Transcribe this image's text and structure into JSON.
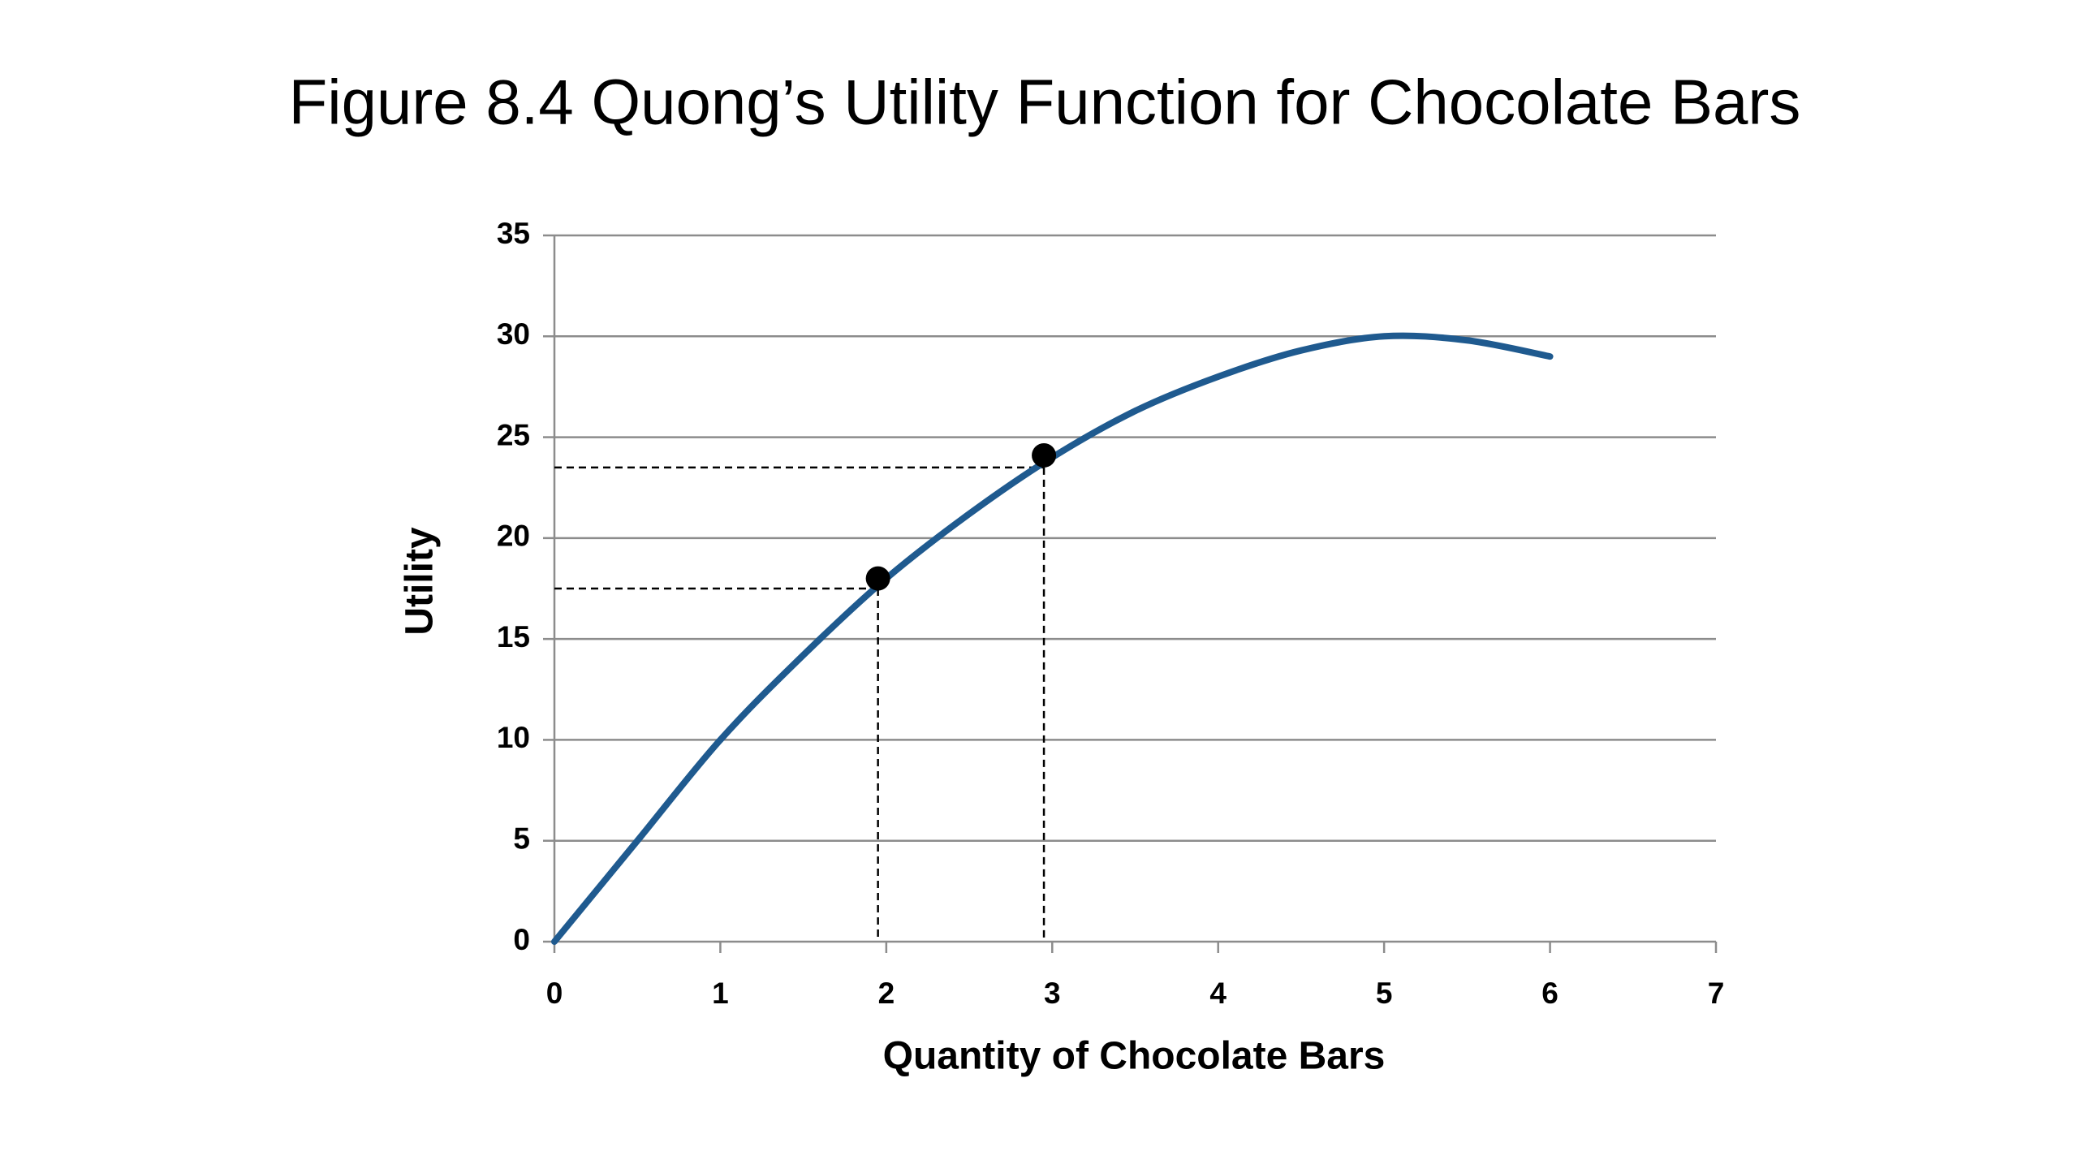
{
  "chart_data": {
    "type": "line",
    "title": "Figure 8.4 Quong’s Utility Function for Chocolate Bars",
    "x_label": "Quantity of Chocolate Bars",
    "y_label": "Utility",
    "x": [
      0,
      0.5,
      1,
      1.5,
      2,
      2.5,
      3,
      3.5,
      4,
      4.5,
      5,
      5.5,
      6
    ],
    "series": [
      {
        "name": "Utility",
        "color": "#1f5a8f",
        "values": [
          0,
          5,
          10,
          14.2,
          18,
          21.2,
          24,
          26.3,
          28,
          29.3,
          30,
          29.8,
          29
        ]
      }
    ],
    "points": {
      "color": "#000000",
      "x": [
        1.95,
        2.95
      ],
      "values": [
        18,
        24.1
      ]
    },
    "guides": {
      "x": [
        1.95,
        2.95
      ],
      "values": [
        17.5,
        23.5
      ]
    },
    "xlim": [
      0,
      7
    ],
    "xticks": [
      0,
      1,
      2,
      3,
      4,
      5,
      6,
      7
    ],
    "ylim": [
      0,
      35
    ],
    "yticks": [
      0,
      5,
      10,
      15,
      20,
      25,
      30,
      35
    ],
    "grid": true
  }
}
